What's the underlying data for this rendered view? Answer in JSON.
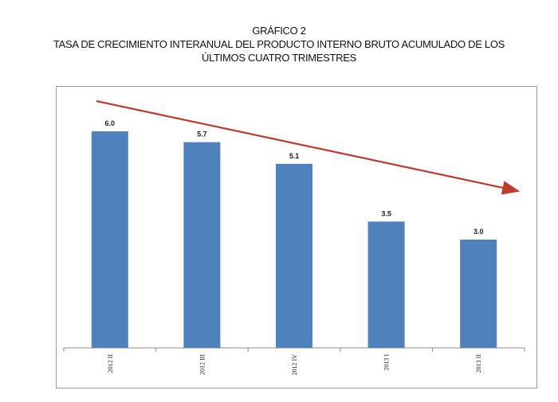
{
  "chart_data": {
    "type": "bar",
    "title": "GRÁFICO 2",
    "subtitle_line1": "TASA DE CRECIMIENTO INTERANUAL DEL PRODUCTO INTERNO BRUTO ACUMULADO DE LOS",
    "subtitle_line2": "ÚLTIMOS CUATRO TRIMESTRES",
    "categories": [
      "2012 II",
      "2012 III",
      "2012 IV",
      "2013 I",
      "2013 II"
    ],
    "values": [
      6.0,
      5.7,
      5.1,
      3.5,
      3.0
    ],
    "value_labels": [
      "6.0",
      "5.7",
      "5.1",
      "3.5",
      "3.0"
    ],
    "ylim": [
      0,
      6.0
    ],
    "xlabel": "",
    "ylabel": "",
    "grid": false,
    "legend": "none",
    "trend_arrow": "decreasing",
    "colors": {
      "bar": "#4f81bd",
      "arrow": "#c0392b",
      "frame": "#9a9a9a"
    }
  }
}
